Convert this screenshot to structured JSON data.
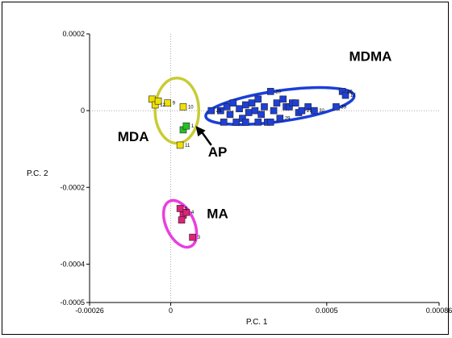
{
  "chart_data": {
    "type": "scatter",
    "title": "",
    "xlabel": "P.C. 1",
    "ylabel": "P.C. 2",
    "xlim": [
      -0.00026,
      0.00086
    ],
    "ylim": [
      -0.0005,
      0.0002
    ],
    "x_tick_labels": [
      "-0.00026",
      "0",
      "0.0005",
      "0.00086"
    ],
    "y_tick_labels": [
      "0.0002",
      "0",
      "-0.0002",
      "-0.0004",
      "-0.0005"
    ],
    "x_ticks": [
      -0.00026,
      0,
      0.0005,
      0.00086
    ],
    "y_ticks": [
      0.0002,
      0,
      -0.0002,
      -0.0004,
      -0.0005
    ],
    "zero_lines": true,
    "groups": [
      {
        "name": "MDMA",
        "color": "#1f3fd6",
        "ellipse_color": "#1a3fd8",
        "ellipse": {
          "cx": 0.00035,
          "cy": 1.2e-05,
          "rx": 0.00024,
          "ry": 4e-05,
          "angle": -8
        },
        "points": [
          {
            "x": 0.00013,
            "y": 0.0,
            "label": "28"
          },
          {
            "x": 0.00016,
            "y": 0.0,
            "label": ""
          },
          {
            "x": 0.00018,
            "y": 1e-05,
            "label": ""
          },
          {
            "x": 0.00019,
            "y": -1e-05,
            "label": ""
          },
          {
            "x": 0.0002,
            "y": 2e-05,
            "label": ""
          },
          {
            "x": 0.00022,
            "y": 5e-06,
            "label": ""
          },
          {
            "x": 0.00023,
            "y": -2e-05,
            "label": ""
          },
          {
            "x": 0.00024,
            "y": 1.5e-05,
            "label": ""
          },
          {
            "x": 0.00025,
            "y": -5e-06,
            "label": ""
          },
          {
            "x": 0.00026,
            "y": 2e-05,
            "label": ""
          },
          {
            "x": 0.00027,
            "y": 0.0,
            "label": ""
          },
          {
            "x": 0.00028,
            "y": 3e-05,
            "label": ""
          },
          {
            "x": 0.00029,
            "y": -1e-05,
            "label": ""
          },
          {
            "x": 0.0003,
            "y": 1e-05,
            "label": ""
          },
          {
            "x": 0.00031,
            "y": -3e-05,
            "label": ""
          },
          {
            "x": 0.00032,
            "y": 5e-05,
            "label": "20"
          },
          {
            "x": 0.00033,
            "y": 0.0,
            "label": ""
          },
          {
            "x": 0.00034,
            "y": 2e-05,
            "label": ""
          },
          {
            "x": 0.00035,
            "y": -2e-05,
            "label": "29"
          },
          {
            "x": 0.00036,
            "y": 3e-05,
            "label": ""
          },
          {
            "x": 0.00037,
            "y": 1e-05,
            "label": ""
          },
          {
            "x": 0.00038,
            "y": 1e-05,
            "label": ""
          },
          {
            "x": 0.00039,
            "y": 2e-05,
            "label": ""
          },
          {
            "x": 0.0004,
            "y": 2e-05,
            "label": ""
          },
          {
            "x": 0.00041,
            "y": -5e-06,
            "label": ""
          },
          {
            "x": 0.00042,
            "y": 0.0,
            "label": "21"
          },
          {
            "x": 0.00044,
            "y": 1e-05,
            "label": ""
          },
          {
            "x": 0.00046,
            "y": 0.0,
            "label": "32"
          },
          {
            "x": 0.00053,
            "y": 1e-05,
            "label": "39"
          },
          {
            "x": 0.00055,
            "y": 5e-05,
            "label": "26"
          },
          {
            "x": 0.00056,
            "y": 4e-05,
            "label": "17"
          },
          {
            "x": 0.00017,
            "y": -3e-05,
            "label": ""
          },
          {
            "x": 0.00021,
            "y": -3e-05,
            "label": ""
          },
          {
            "x": 0.00024,
            "y": -3e-05,
            "label": ""
          },
          {
            "x": 0.00028,
            "y": -3e-05,
            "label": ""
          },
          {
            "x": 0.00032,
            "y": -3e-05,
            "label": ""
          }
        ]
      },
      {
        "name": "MDA",
        "color": "#f0e000",
        "ellipse_color": "#c8cc33",
        "ellipse": {
          "cx": 2e-05,
          "cy": 0.0,
          "rx": 7e-05,
          "ry": 8.5e-05,
          "angle": 0
        },
        "points": [
          {
            "x": -6e-05,
            "y": 3e-05,
            "label": ""
          },
          {
            "x": -5e-05,
            "y": 1.5e-05,
            "label": "12"
          },
          {
            "x": -4e-05,
            "y": 2.5e-05,
            "label": ""
          },
          {
            "x": -1e-05,
            "y": 2e-05,
            "label": "9"
          },
          {
            "x": 4e-05,
            "y": 1e-05,
            "label": "10"
          },
          {
            "x": 3e-05,
            "y": -9e-05,
            "label": "11"
          }
        ]
      },
      {
        "name": "AP",
        "color": "#22c422",
        "points": [
          {
            "x": 4e-05,
            "y": -5e-05,
            "label": ""
          },
          {
            "x": 5e-05,
            "y": -4e-05,
            "label": "1"
          }
        ]
      },
      {
        "name": "MA",
        "color": "#e0207a",
        "ellipse_color": "#e83fe0",
        "ellipse": {
          "cx": 3e-05,
          "cy": -0.000295,
          "rx": 4.5e-05,
          "ry": 6.5e-05,
          "angle": -25
        },
        "points": [
          {
            "x": 3e-05,
            "y": -0.000255,
            "label": "5"
          },
          {
            "x": 4e-05,
            "y": -0.000272,
            "label": ""
          },
          {
            "x": 5e-05,
            "y": -0.000265,
            "label": "4"
          },
          {
            "x": 3.5e-05,
            "y": -0.000285,
            "label": ""
          },
          {
            "x": 7e-05,
            "y": -0.00033,
            "label": "3"
          }
        ]
      }
    ],
    "annotations": [
      {
        "text": "MDMA",
        "x": 0.00064,
        "y": 0.00013
      },
      {
        "text": "MDA",
        "x": -0.00012,
        "y": -8e-05
      },
      {
        "text": "AP",
        "x": 0.00015,
        "y": -0.00012
      },
      {
        "text": "MA",
        "x": 0.00015,
        "y": -0.00028
      }
    ],
    "arrow": {
      "from": [
        0.00013,
        -9e-05
      ],
      "to": [
        8e-05,
        -4e-05
      ]
    }
  }
}
